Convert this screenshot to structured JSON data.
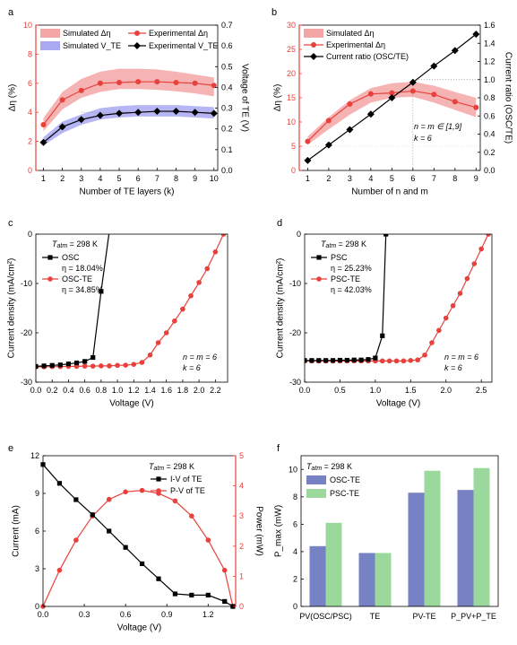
{
  "colors": {
    "red": "#e8413c",
    "pink_band": "#f4a6a6",
    "blue_band": "#a9a9f2",
    "black": "#000000",
    "osc_bar": "#7682c3",
    "psc_bar": "#9bd89b",
    "dotted": "#888888"
  },
  "chart_data": [
    {
      "panel": "a",
      "type": "line",
      "xlabel": "Number of TE layers (k)",
      "ylabel_left": "Δη (%)",
      "ylabel_right": "Voltage of TE (V)",
      "xlim": [
        0.6,
        10.2
      ],
      "ylim_left": [
        0,
        10
      ],
      "ylim_right": [
        0,
        0.7
      ],
      "xticks": [
        1,
        2,
        3,
        4,
        5,
        6,
        7,
        8,
        9,
        10
      ],
      "yticks_left": [
        0,
        2,
        4,
        6,
        8,
        10
      ],
      "yticks_right": [
        0.0,
        0.1,
        0.2,
        0.3,
        0.4,
        0.5,
        0.6,
        0.7
      ],
      "legend": [
        "Simulated Δη",
        "Experimental Δη",
        "Simulated V_TE",
        "Experimental V_TE"
      ],
      "series": [
        {
          "name": "Simulated Δη",
          "kind": "band",
          "axis": "left",
          "x": [
            1,
            2,
            3,
            4,
            5,
            6,
            7,
            8,
            9,
            10
          ],
          "lower": [
            2.7,
            4.2,
            5.0,
            5.4,
            5.6,
            5.6,
            5.55,
            5.45,
            5.3,
            5.1
          ],
          "upper": [
            3.6,
            5.4,
            6.3,
            6.8,
            7.0,
            7.0,
            6.95,
            6.8,
            6.6,
            6.4
          ]
        },
        {
          "name": "Experimental Δη",
          "kind": "line",
          "axis": "left",
          "x": [
            1,
            2,
            3,
            4,
            5,
            6,
            7,
            8,
            9,
            10
          ],
          "y": [
            3.15,
            4.85,
            5.5,
            6.0,
            6.05,
            6.1,
            6.1,
            6.05,
            6.0,
            5.85
          ]
        },
        {
          "name": "Simulated V_TE",
          "kind": "band",
          "axis": "right",
          "x": [
            1,
            2,
            3,
            4,
            5,
            6,
            7,
            8,
            9,
            10
          ],
          "lower": [
            0.12,
            0.18,
            0.22,
            0.245,
            0.255,
            0.26,
            0.26,
            0.26,
            0.255,
            0.25
          ],
          "upper": [
            0.16,
            0.235,
            0.27,
            0.3,
            0.31,
            0.315,
            0.315,
            0.315,
            0.31,
            0.305
          ]
        },
        {
          "name": "Experimental V_TE",
          "kind": "line",
          "axis": "right",
          "x": [
            1,
            2,
            3,
            4,
            5,
            6,
            7,
            8,
            9,
            10
          ],
          "y": [
            0.135,
            0.21,
            0.245,
            0.265,
            0.275,
            0.28,
            0.285,
            0.285,
            0.28,
            0.275
          ]
        }
      ]
    },
    {
      "panel": "b",
      "type": "line",
      "xlabel": "Number of n and m",
      "ylabel_left": "Δη (%)",
      "ylabel_right": "Current ratio (OSC/TE)",
      "xlim": [
        0.6,
        9.2
      ],
      "ylim_left": [
        0,
        30
      ],
      "ylim_right": [
        0,
        1.6
      ],
      "xticks": [
        1,
        2,
        3,
        4,
        5,
        6,
        7,
        8,
        9
      ],
      "yticks_left": [
        0,
        5,
        10,
        15,
        20,
        25,
        30
      ],
      "yticks_right": [
        0.0,
        0.2,
        0.4,
        0.6,
        0.8,
        1.0,
        1.2,
        1.4,
        1.6
      ],
      "legend": [
        "Simulated Δη",
        "Experimental Δη",
        "Current ratio (OSC/TE)"
      ],
      "annotation": [
        "n = m ∈ [1,9]",
        "k = 6"
      ],
      "series": [
        {
          "name": "Simulated Δη",
          "kind": "band",
          "axis": "left",
          "x": [
            1,
            2,
            3,
            4,
            5,
            6,
            7,
            8,
            9
          ],
          "lower": [
            5.3,
            8.5,
            11.5,
            14.0,
            15.0,
            15.2,
            14.0,
            12.5,
            11.0
          ],
          "upper": [
            7.0,
            11.0,
            14.5,
            17.0,
            18.0,
            18.3,
            17.5,
            16.2,
            15.0
          ]
        },
        {
          "name": "Experimental Δη",
          "kind": "line",
          "axis": "left",
          "x": [
            1,
            2,
            3,
            4,
            5,
            6,
            7,
            8,
            9
          ],
          "y": [
            6.0,
            10.3,
            13.7,
            15.8,
            16.0,
            16.4,
            15.7,
            14.2,
            13.0
          ]
        },
        {
          "name": "Current ratio (OSC/TE)",
          "kind": "line",
          "axis": "right",
          "x": [
            1,
            2,
            3,
            4,
            5,
            6,
            7,
            8,
            9
          ],
          "y": [
            0.11,
            0.28,
            0.45,
            0.62,
            0.8,
            0.97,
            1.15,
            1.32,
            1.5
          ]
        }
      ]
    },
    {
      "panel": "c",
      "type": "line",
      "xlabel": "Voltage (V)",
      "ylabel": "Current density (mA/cm²)",
      "xlim": [
        0,
        2.35
      ],
      "ylim": [
        -30,
        0
      ],
      "xticks": [
        0.0,
        0.2,
        0.4,
        0.6,
        0.8,
        1.0,
        1.2,
        1.4,
        1.6,
        1.8,
        2.0,
        2.2
      ],
      "yticks": [
        0,
        -10,
        -20,
        -30
      ],
      "ytick_labels": [
        "0",
        "-10",
        "-20",
        "-30"
      ],
      "info": {
        "temp_prefix": "T",
        "temp_sub": "atm",
        "temp_value": "= 298 K",
        "nm": "n = m = 6",
        "k": "k = 6"
      },
      "legend": [
        {
          "name": "OSC",
          "eta": "η = 18.04%"
        },
        {
          "name": "OSC-TE",
          "eta": "η = 34.85%"
        }
      ],
      "series": [
        {
          "name": "OSC",
          "color_key": "black",
          "x": [
            0,
            0.1,
            0.2,
            0.3,
            0.4,
            0.5,
            0.6,
            0.7,
            0.8,
            0.9
          ],
          "y": [
            -26.8,
            -26.7,
            -26.6,
            -26.5,
            -26.3,
            -26.1,
            -25.8,
            -25.0,
            -11.6,
            0.5
          ]
        },
        {
          "name": "OSC-TE",
          "color_key": "red",
          "x": [
            0,
            0.1,
            0.2,
            0.3,
            0.4,
            0.5,
            0.6,
            0.7,
            0.8,
            0.9,
            1.0,
            1.1,
            1.2,
            1.3,
            1.4,
            1.5,
            1.6,
            1.7,
            1.8,
            1.9,
            2.0,
            2.1,
            2.2,
            2.3
          ],
          "y": [
            -26.9,
            -26.9,
            -26.85,
            -26.85,
            -26.8,
            -26.8,
            -26.75,
            -26.75,
            -26.7,
            -26.7,
            -26.6,
            -26.55,
            -26.4,
            -26.0,
            -24.5,
            -22.0,
            -20.0,
            -17.6,
            -15.2,
            -12.5,
            -9.8,
            -7.0,
            -3.6,
            0
          ]
        }
      ]
    },
    {
      "panel": "d",
      "type": "line",
      "xlabel": "Voltage (V)",
      "ylabel": "Current density (mA/cm²)",
      "xlim": [
        0,
        2.65
      ],
      "ylim": [
        -30,
        0
      ],
      "xticks": [
        0.0,
        0.5,
        1.0,
        1.5,
        2.0,
        2.5
      ],
      "yticks": [
        0,
        -10,
        -20,
        -30
      ],
      "ytick_labels": [
        "0",
        "-10",
        "-20",
        "-30"
      ],
      "info": {
        "temp_prefix": "T",
        "temp_sub": "atm",
        "temp_value": "= 298 K",
        "nm": "n = m = 6",
        "k": "k = 6"
      },
      "legend": [
        {
          "name": "PSC",
          "eta": "η = 25.23%"
        },
        {
          "name": "PSC-TE",
          "eta": "η = 42.03%"
        }
      ],
      "series": [
        {
          "name": "PSC",
          "color_key": "black",
          "x": [
            0,
            0.1,
            0.2,
            0.3,
            0.4,
            0.5,
            0.6,
            0.7,
            0.8,
            0.9,
            1.0,
            1.1,
            1.15
          ],
          "y": [
            -25.6,
            -25.6,
            -25.6,
            -25.6,
            -25.6,
            -25.55,
            -25.55,
            -25.5,
            -25.5,
            -25.4,
            -25.1,
            -20.6,
            0
          ]
        },
        {
          "name": "PSC-TE",
          "color_key": "red",
          "x": [
            0,
            0.1,
            0.2,
            0.3,
            0.4,
            0.5,
            0.6,
            0.7,
            0.8,
            0.9,
            1.0,
            1.1,
            1.2,
            1.3,
            1.4,
            1.5,
            1.6,
            1.7,
            1.8,
            1.9,
            2.0,
            2.1,
            2.2,
            2.3,
            2.4,
            2.5,
            2.6
          ],
          "y": [
            -25.7,
            -25.7,
            -25.7,
            -25.7,
            -25.7,
            -25.7,
            -25.7,
            -25.7,
            -25.7,
            -25.7,
            -25.7,
            -25.7,
            -25.7,
            -25.7,
            -25.7,
            -25.6,
            -25.5,
            -24.5,
            -22.0,
            -19.5,
            -17.0,
            -14.5,
            -12.0,
            -9.0,
            -6.0,
            -3.0,
            0
          ]
        }
      ]
    },
    {
      "panel": "e",
      "type": "line",
      "xlabel": "Voltage (V)",
      "ylabel_left": "Current (mA)",
      "ylabel_right": "Power (mW)",
      "xlim": [
        0,
        1.4
      ],
      "ylim_left": [
        0,
        12
      ],
      "ylim_right": [
        0,
        5
      ],
      "xticks": [
        0.0,
        0.3,
        0.6,
        0.9,
        1.2
      ],
      "yticks_left": [
        0,
        3,
        6,
        9,
        12
      ],
      "yticks_right": [
        0,
        1,
        2,
        3,
        4,
        5
      ],
      "info": {
        "temp_prefix": "T",
        "temp_sub": "atm",
        "temp_value": "= 298 K"
      },
      "legend": [
        "I-V of TE",
        "P-V of TE"
      ],
      "series": [
        {
          "name": "I-V of TE",
          "axis": "left",
          "color_key": "black",
          "x": [
            0,
            0.12,
            0.24,
            0.36,
            0.48,
            0.6,
            0.72,
            0.84,
            0.96,
            1.08,
            1.2,
            1.32,
            1.38
          ],
          "y": [
            11.3,
            9.8,
            8.5,
            7.3,
            6.0,
            4.7,
            3.4,
            2.2,
            1.0,
            0.9,
            0.9,
            0.4,
            0
          ]
        },
        {
          "name": "P-V of TE",
          "axis": "right",
          "color_key": "red",
          "x": [
            0,
            0.12,
            0.24,
            0.36,
            0.48,
            0.6,
            0.72,
            0.84,
            0.96,
            1.08,
            1.2,
            1.32,
            1.38
          ],
          "y": [
            0,
            1.2,
            2.2,
            3.0,
            3.55,
            3.8,
            3.85,
            3.75,
            3.5,
            3.0,
            2.2,
            1.2,
            0
          ]
        }
      ]
    },
    {
      "panel": "f",
      "type": "bar",
      "ylabel": "P_max (mW)",
      "ylim": [
        0,
        11
      ],
      "yticks": [
        0,
        2,
        4,
        6,
        8,
        10
      ],
      "categories": [
        "PV(OSC/PSC)",
        "TE",
        "PV-TE",
        "P_PV+P_TE"
      ],
      "info": {
        "temp_prefix": "T",
        "temp_sub": "atm",
        "temp_value": "= 298 K"
      },
      "series": [
        {
          "name": "OSC-TE",
          "color_key": "osc_bar",
          "values": [
            4.4,
            3.9,
            8.3,
            8.5
          ]
        },
        {
          "name": "PSC-TE",
          "color_key": "psc_bar",
          "values": [
            6.1,
            3.9,
            9.9,
            10.1
          ]
        }
      ]
    }
  ],
  "panel_letters": [
    "a",
    "b",
    "c",
    "d",
    "e",
    "f"
  ]
}
